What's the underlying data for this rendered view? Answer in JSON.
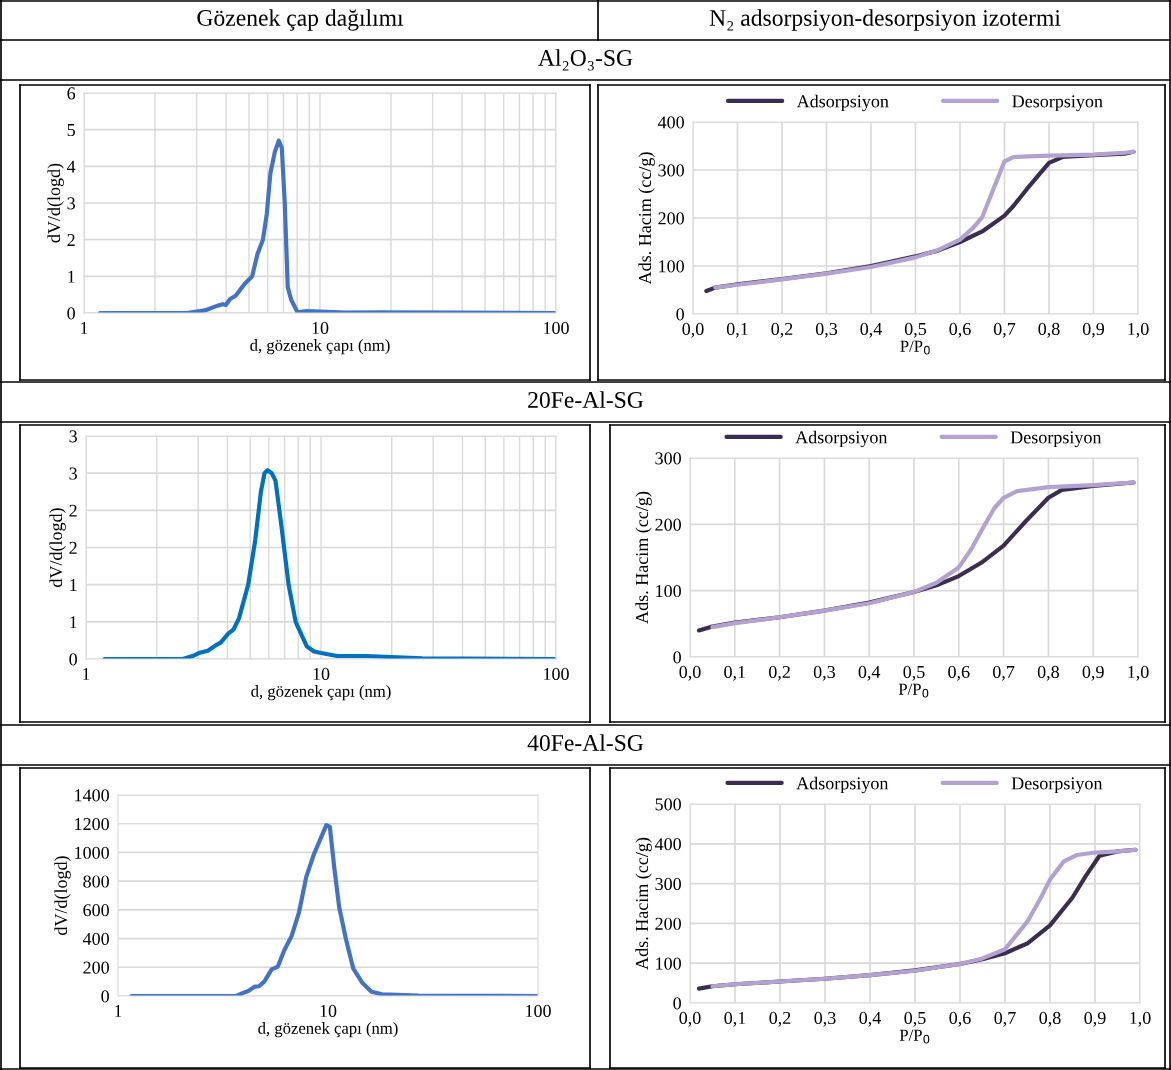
{
  "chart_data": [
    {
      "type": "line",
      "title": "Al₂O₃-SG",
      "annotations": [
        "Gözenek çap dağılımı"
      ],
      "xlabel": "d, gözenek çapı (nm)",
      "ylabel": "dV/d(logd)",
      "log": "x",
      "grid": true,
      "legend": false,
      "xlim": [
        1,
        100
      ],
      "xticks": [
        1,
        10,
        100
      ],
      "ylim": [
        0,
        6
      ],
      "yticks": [
        0,
        1,
        2,
        3,
        4,
        5,
        6
      ],
      "series": [
        {
          "color": "#4472c4",
          "x": [
            1.17,
            2.72,
            3.25,
            3.68,
            3.87,
            3.99,
            4.16,
            4.39,
            4.8,
            5.16,
            5.43,
            5.73,
            5.95,
            6.16,
            6.44,
            6.69,
            6.89,
            7.09,
            7.3,
            7.56,
            8.03,
            8.77,
            10.0,
            12.9,
            18.5,
            37.5,
            100
          ],
          "values": [
            0,
            0,
            0.07,
            0.2,
            0.24,
            0.22,
            0.38,
            0.47,
            0.8,
            1.0,
            1.6,
            2.0,
            2.7,
            3.8,
            4.4,
            4.7,
            4.5,
            3.0,
            0.7,
            0.35,
            0.02,
            0.05,
            0.04,
            0.01,
            0.02,
            0.01,
            0
          ]
        }
      ]
    },
    {
      "type": "line",
      "annotations": [
        "N₂ adsorpsiyon-desorpsiyon izotermi"
      ],
      "xlabel": "P/P$_{0}$",
      "ylabel": "Ads. Hacim (cc/g)",
      "grid": true,
      "legend": "top",
      "xlim": [
        0,
        1
      ],
      "xticks": [
        {
          "value": 0,
          "label": "0,0"
        },
        {
          "value": 0.1,
          "label": "0,1"
        },
        {
          "value": 0.2,
          "label": "0,2"
        },
        {
          "value": 0.3,
          "label": "0,3"
        },
        {
          "value": 0.4,
          "label": "0,4"
        },
        {
          "value": 0.5,
          "label": "0,5"
        },
        {
          "value": 0.6,
          "label": "0,6"
        },
        {
          "value": 0.7,
          "label": "0,7"
        },
        {
          "value": 0.8,
          "label": "0,8"
        },
        {
          "value": 0.9,
          "label": "0,9"
        },
        {
          "value": 1,
          "label": "1,0"
        }
      ],
      "ylim": [
        0,
        400
      ],
      "yticks": [
        0,
        100,
        200,
        300,
        400
      ],
      "series": [
        {
          "name": "Adsorpsiyon",
          "color": "#3b2d50",
          "x": [
            0.03,
            0.05,
            0.1,
            0.2,
            0.3,
            0.4,
            0.5,
            0.55,
            0.6,
            0.65,
            0.7,
            0.72,
            0.75,
            0.8,
            0.83,
            0.9,
            0.97,
            0.99
          ],
          "values": [
            48,
            55,
            62,
            73,
            85,
            100,
            120,
            132,
            150,
            172,
            205,
            225,
            260,
            315,
            327,
            331,
            334,
            338
          ]
        },
        {
          "name": "Desorpsiyon",
          "color": "#b3a2cf",
          "x": [
            0.05,
            0.1,
            0.2,
            0.3,
            0.4,
            0.5,
            0.55,
            0.6,
            0.63,
            0.65,
            0.7,
            0.72,
            0.8,
            0.9,
            0.97,
            0.99
          ],
          "values": [
            55,
            61,
            72,
            84,
            98,
            118,
            133,
            155,
            180,
            202,
            318,
            327,
            330,
            332,
            336,
            338
          ]
        }
      ]
    },
    {
      "type": "line",
      "title": "20Fe-Al-SG",
      "xlabel": "d, gözenek çapı (nm)",
      "ylabel": "dV/d(logd)",
      "log": "x",
      "grid": true,
      "legend": false,
      "xlim": [
        1,
        100
      ],
      "xticks": [
        1,
        10,
        100
      ],
      "ylim": [
        0,
        3
      ],
      "yticks": [
        0,
        {
          "value": 0.5,
          "label": "1"
        },
        1,
        {
          "value": 1.5,
          "label": "2"
        },
        2,
        {
          "value": 2.5,
          "label": "3"
        },
        3
      ],
      "series": [
        {
          "color": "#0070c0",
          "x": [
            1.2,
            2.58,
            2.84,
            3.02,
            3.3,
            3.55,
            3.74,
            4.03,
            4.25,
            4.48,
            4.9,
            5.25,
            5.55,
            5.75,
            5.92,
            6.17,
            6.4,
            6.78,
            7.28,
            7.8,
            8.7,
            9.34,
            10.4,
            11.7,
            15.6,
            27,
            100
          ],
          "values": [
            0,
            0,
            0.04,
            0.08,
            0.11,
            0.18,
            0.22,
            0.34,
            0.4,
            0.55,
            1.0,
            1.6,
            2.25,
            2.5,
            2.54,
            2.5,
            2.4,
            1.8,
            1.0,
            0.5,
            0.17,
            0.1,
            0.07,
            0.04,
            0.04,
            0.01,
            0
          ]
        }
      ]
    },
    {
      "type": "line",
      "xlabel": "P/P$_{0}$",
      "ylabel": "Ads. Hacim (cc/g)",
      "grid": true,
      "legend": "top",
      "xlim": [
        0,
        1
      ],
      "xticks": [
        {
          "value": 0,
          "label": "0,0"
        },
        {
          "value": 0.1,
          "label": "0,1"
        },
        {
          "value": 0.2,
          "label": "0,2"
        },
        {
          "value": 0.3,
          "label": "0,3"
        },
        {
          "value": 0.4,
          "label": "0,4"
        },
        {
          "value": 0.5,
          "label": "0,5"
        },
        {
          "value": 0.6,
          "label": "0,6"
        },
        {
          "value": 0.7,
          "label": "0,7"
        },
        {
          "value": 0.8,
          "label": "0,8"
        },
        {
          "value": 0.9,
          "label": "0,9"
        },
        {
          "value": 1,
          "label": "1,0"
        }
      ],
      "ylim": [
        0,
        300
      ],
      "yticks": [
        0,
        100,
        200,
        300
      ],
      "series": [
        {
          "name": "Adsorpsiyon",
          "color": "#3b2d50",
          "x": [
            0.02,
            0.05,
            0.1,
            0.2,
            0.3,
            0.4,
            0.5,
            0.55,
            0.6,
            0.65,
            0.7,
            0.75,
            0.8,
            0.83,
            0.9,
            0.99
          ],
          "values": [
            40,
            46,
            52,
            60,
            70,
            82,
            98,
            108,
            122,
            142,
            168,
            205,
            240,
            252,
            258,
            263
          ]
        },
        {
          "name": "Desorpsiyon",
          "color": "#b3a2cf",
          "x": [
            0.05,
            0.1,
            0.2,
            0.3,
            0.4,
            0.5,
            0.55,
            0.6,
            0.63,
            0.65,
            0.68,
            0.7,
            0.73,
            0.8,
            0.9,
            0.99
          ],
          "values": [
            45,
            51,
            60,
            70,
            81,
            98,
            112,
            135,
            165,
            190,
            225,
            240,
            250,
            256,
            259,
            263
          ]
        }
      ]
    },
    {
      "type": "line",
      "title": "40Fe-Al-SG",
      "xlabel": "d, gözenek çapı (nm)",
      "ylabel": "dV/d(logd)",
      "log": "x",
      "grid": "y",
      "legend": false,
      "xlim": [
        1,
        100
      ],
      "xticks": [
        1,
        10,
        100
      ],
      "ylim": [
        0,
        1400
      ],
      "yticks": [
        0,
        200,
        400,
        600,
        800,
        1000,
        1200,
        1400
      ],
      "series": [
        {
          "color": "#4472c4",
          "x": [
            1.16,
            3.66,
            3.92,
            4.17,
            4.47,
            4.69,
            4.97,
            5.39,
            5.77,
            6.2,
            6.72,
            7.27,
            7.88,
            8.53,
            9.24,
            9.82,
            10.2,
            10.7,
            11.3,
            12.2,
            13.2,
            14.6,
            16.1,
            18.1,
            27,
            100
          ],
          "values": [
            0,
            0,
            20,
            35,
            65,
            68,
            100,
            185,
            205,
            320,
            420,
            580,
            830,
            980,
            1100,
            1190,
            1180,
            900,
            620,
            390,
            190,
            90,
            30,
            12,
            3,
            0
          ]
        }
      ]
    },
    {
      "type": "line",
      "xlabel": "P/P$_{0}$",
      "ylabel": "Ads. Hacim (cc/g)",
      "grid": true,
      "legend": "top",
      "xlim": [
        0,
        1
      ],
      "xticks": [
        {
          "value": 0,
          "label": "0,0"
        },
        {
          "value": 0.1,
          "label": "0,1"
        },
        {
          "value": 0.2,
          "label": "0,2"
        },
        {
          "value": 0.3,
          "label": "0,3"
        },
        {
          "value": 0.4,
          "label": "0,4"
        },
        {
          "value": 0.5,
          "label": "0,5"
        },
        {
          "value": 0.6,
          "label": "0,6"
        },
        {
          "value": 0.7,
          "label": "0,7"
        },
        {
          "value": 0.8,
          "label": "0,8"
        },
        {
          "value": 0.9,
          "label": "0,9"
        },
        {
          "value": 1,
          "label": "1,0"
        }
      ],
      "ylim": [
        0,
        500
      ],
      "yticks": [
        0,
        100,
        200,
        300,
        400,
        500
      ],
      "series": [
        {
          "name": "Adsorpsiyon",
          "color": "#3b2d50",
          "x": [
            0.02,
            0.05,
            0.1,
            0.2,
            0.3,
            0.4,
            0.5,
            0.6,
            0.65,
            0.7,
            0.75,
            0.8,
            0.85,
            0.88,
            0.91,
            0.95,
            0.99
          ],
          "values": [
            36,
            42,
            47,
            54,
            61,
            70,
            82,
            98,
            110,
            125,
            150,
            195,
            265,
            320,
            370,
            381,
            385
          ]
        },
        {
          "name": "Desorpsiyon",
          "color": "#b3a2cf",
          "x": [
            0.05,
            0.1,
            0.2,
            0.3,
            0.4,
            0.5,
            0.6,
            0.65,
            0.7,
            0.75,
            0.78,
            0.8,
            0.83,
            0.86,
            0.9,
            0.95,
            0.99
          ],
          "values": [
            42,
            47,
            54,
            61,
            70,
            81,
            98,
            112,
            135,
            205,
            265,
            310,
            355,
            372,
            378,
            381,
            385
          ]
        }
      ]
    }
  ]
}
